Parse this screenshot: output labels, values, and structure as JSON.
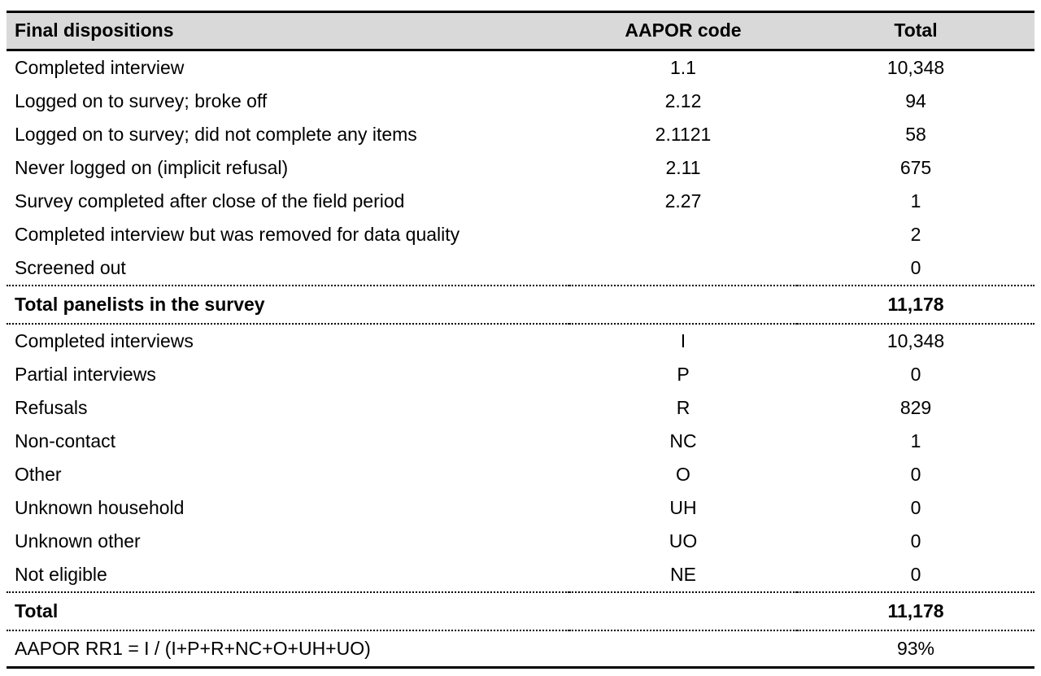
{
  "colors": {
    "header_bg": "#d9d9d9",
    "rule": "#000000",
    "text": "#000000",
    "background": "#ffffff"
  },
  "table": {
    "header": {
      "dispositions": "Final dispositions",
      "code": "AAPOR code",
      "total": "Total"
    },
    "rows": [
      {
        "label": "Completed interview",
        "code": "1.1",
        "total": "10,348",
        "bold": false,
        "rule_above": false,
        "rule_below": false
      },
      {
        "label": "Logged on to survey; broke off",
        "code": "2.12",
        "total": "94",
        "bold": false,
        "rule_above": false,
        "rule_below": false
      },
      {
        "label": "Logged on to survey; did not complete any items",
        "code": "2.1121",
        "total": "58",
        "bold": false,
        "rule_above": false,
        "rule_below": false
      },
      {
        "label": "Never logged on (implicit refusal)",
        "code": "2.11",
        "total": "675",
        "bold": false,
        "rule_above": false,
        "rule_below": false
      },
      {
        "label": "Survey completed after close of the field period",
        "code": "2.27",
        "total": "1",
        "bold": false,
        "rule_above": false,
        "rule_below": false
      },
      {
        "label": "Completed interview but was removed for data quality",
        "code": "",
        "total": "2",
        "bold": false,
        "rule_above": false,
        "rule_below": false
      },
      {
        "label": "Screened out",
        "code": "",
        "total": "0",
        "bold": false,
        "rule_above": false,
        "rule_below": false
      },
      {
        "label": "Total panelists in the survey",
        "code": "",
        "total": "11,178",
        "bold": true,
        "rule_above": true,
        "rule_below": true
      },
      {
        "label": "Completed interviews",
        "code": "I",
        "total": "10,348",
        "bold": false,
        "rule_above": false,
        "rule_below": false
      },
      {
        "label": "Partial interviews",
        "code": "P",
        "total": "0",
        "bold": false,
        "rule_above": false,
        "rule_below": false
      },
      {
        "label": "Refusals",
        "code": "R",
        "total": "829",
        "bold": false,
        "rule_above": false,
        "rule_below": false
      },
      {
        "label": "Non-contact",
        "code": "NC",
        "total": "1",
        "bold": false,
        "rule_above": false,
        "rule_below": false
      },
      {
        "label": "Other",
        "code": "O",
        "total": "0",
        "bold": false,
        "rule_above": false,
        "rule_below": false
      },
      {
        "label": "Unknown household",
        "code": "UH",
        "total": "0",
        "bold": false,
        "rule_above": false,
        "rule_below": false
      },
      {
        "label": "Unknown other",
        "code": "UO",
        "total": "0",
        "bold": false,
        "rule_above": false,
        "rule_below": false
      },
      {
        "label": "Not eligible",
        "code": "NE",
        "total": "0",
        "bold": false,
        "rule_above": false,
        "rule_below": false
      },
      {
        "label": "Total",
        "code": "",
        "total": "11,178",
        "bold": true,
        "rule_above": true,
        "rule_below": true
      },
      {
        "label": "AAPOR RR1 = I / (I+P+R+NC+O+UH+UO)",
        "code": "",
        "total": "93%",
        "bold": false,
        "rule_above": false,
        "rule_below": false,
        "last": true
      }
    ]
  }
}
